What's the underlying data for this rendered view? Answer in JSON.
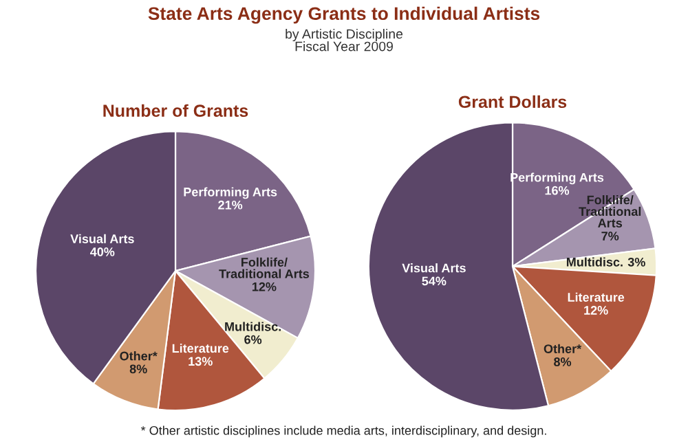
{
  "chart_data": [
    {
      "type": "other",
      "title": "State Arts Agency Grants to Individual Artists",
      "subtitle": "by Artistic Discipline\nFiscal Year 2009",
      "annotations": [
        "* Other artistic disciplines include media arts, interdisciplinary, and design."
      ]
    },
    {
      "type": "pie",
      "title": "Number of Grants",
      "categories": [
        "Performing Arts",
        "Folklife/\nTraditional Arts",
        "Multidisc.",
        "Literature",
        "Other*",
        "Visual Arts"
      ],
      "values": [
        21,
        12,
        6,
        13,
        8,
        40
      ],
      "colors": [
        "#7b6486",
        "#a595af",
        "#f1edcf",
        "#b0563d",
        "#d19a70",
        "#5b4668"
      ],
      "value_labels": [
        "21%",
        "12%",
        "6%",
        "13%",
        "8%",
        "40%"
      ]
    },
    {
      "type": "pie",
      "title": "Grant Dollars",
      "categories": [
        "Performing Arts",
        "Folklife/\nTraditional\nArts",
        "Multidisc.",
        "Literature",
        "Other*",
        "Visual Arts"
      ],
      "values": [
        16,
        7,
        3,
        12,
        8,
        54
      ],
      "colors": [
        "#7b6486",
        "#a595af",
        "#f1edcf",
        "#b0563d",
        "#d19a70",
        "#5b4668"
      ],
      "value_labels": [
        "16%",
        "7%",
        "3%",
        "12%",
        "8%",
        "54%"
      ]
    }
  ]
}
